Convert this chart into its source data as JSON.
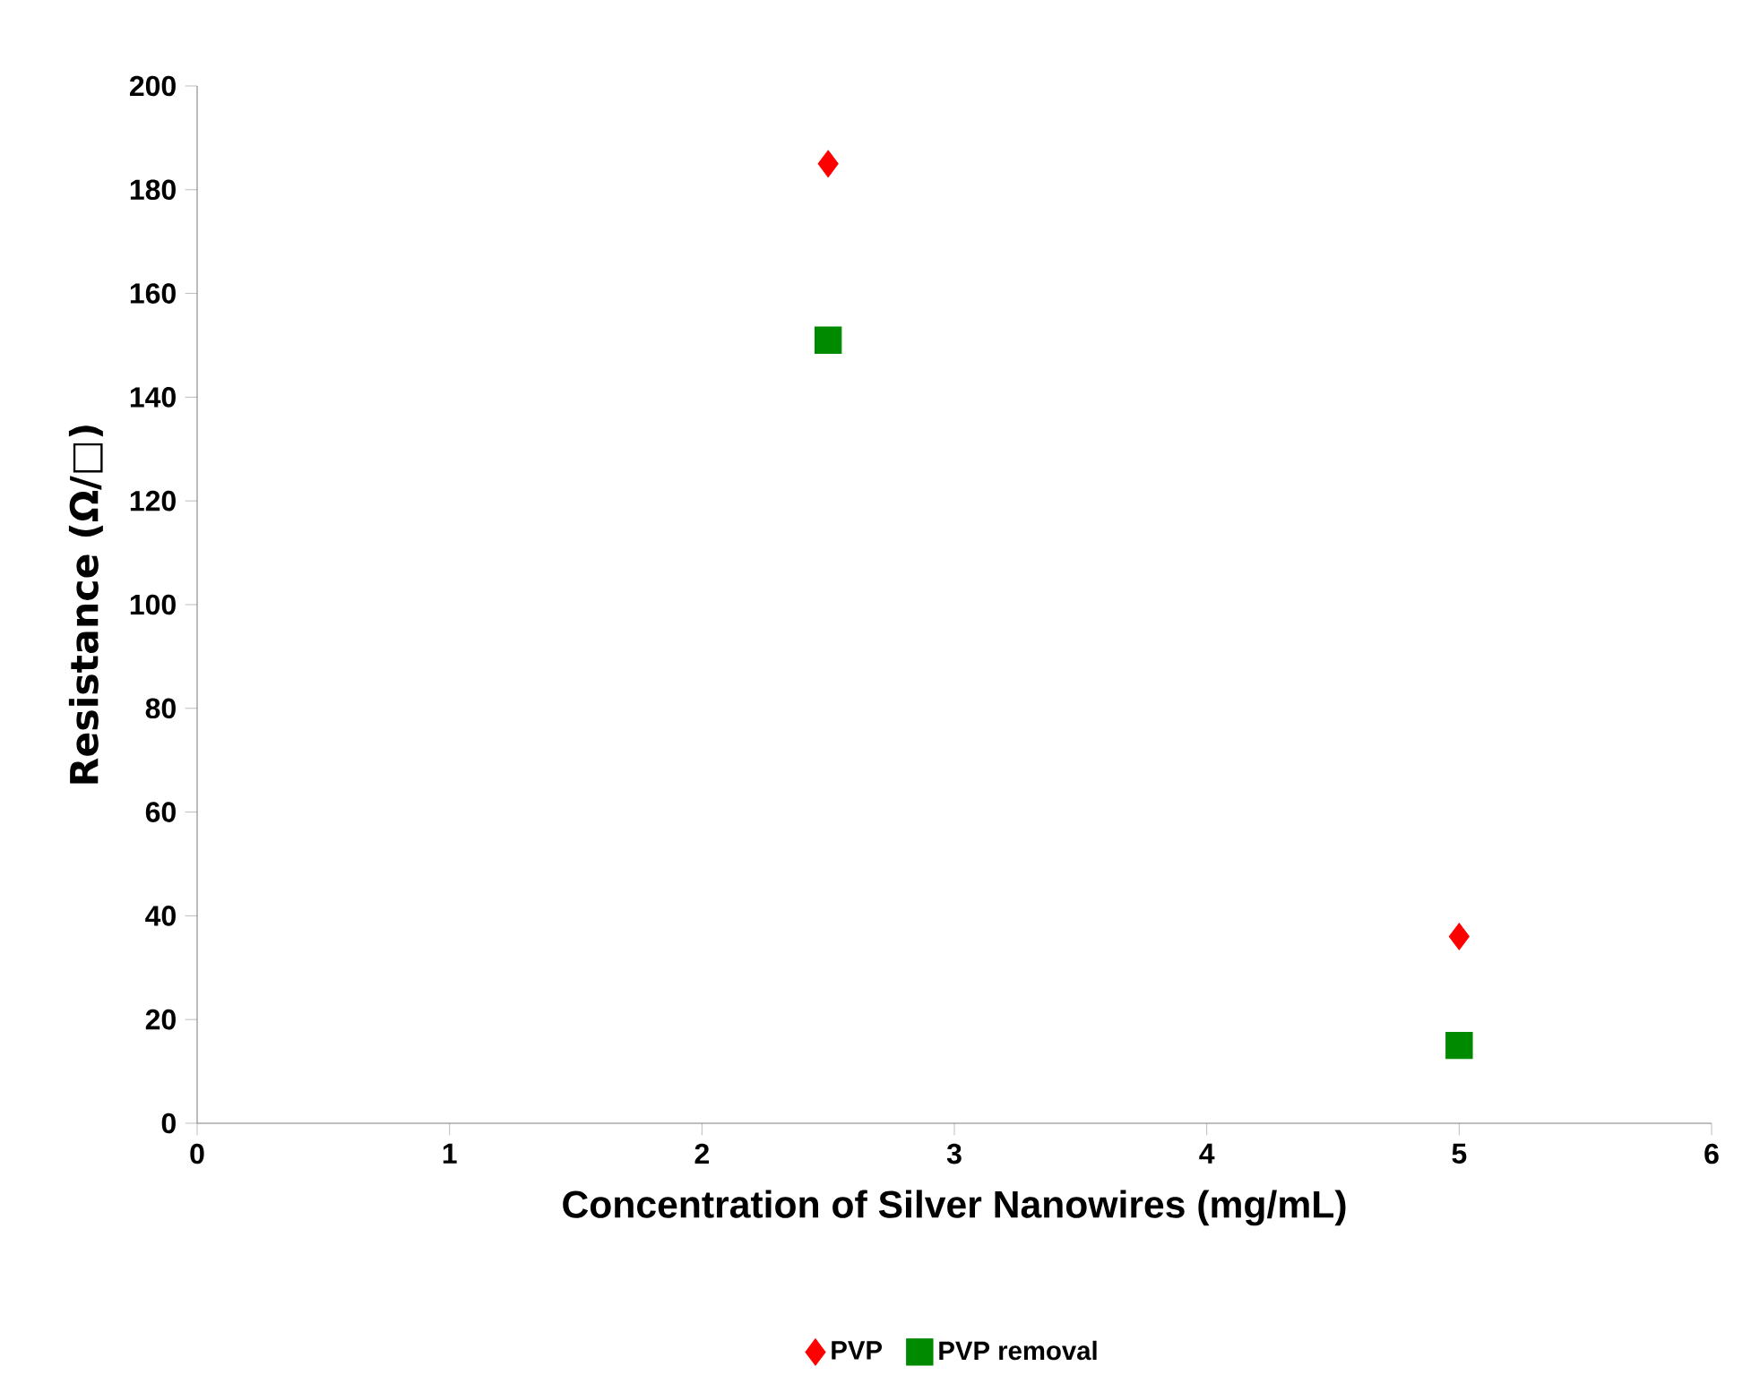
{
  "chart_data": {
    "type": "scatter",
    "xlabel": "Concentration of Silver Nanowires (mg/mL)",
    "ylabel": "Resistance (Ω/□)",
    "x": [
      2.5,
      5
    ],
    "xlim": [
      0,
      6
    ],
    "xticks": [
      0,
      1,
      2,
      3,
      4,
      5,
      6
    ],
    "ylim": [
      0,
      200
    ],
    "yticks": [
      0,
      20,
      40,
      60,
      80,
      100,
      120,
      140,
      160,
      180,
      200
    ],
    "grid": false,
    "legend": "bottom",
    "series": [
      {
        "name": "PVP",
        "color": "#ff0000",
        "marker": "diamond",
        "values": [
          185,
          36
        ]
      },
      {
        "name": "PVP removal",
        "color": "#008a00",
        "marker": "square",
        "values": [
          151,
          15
        ]
      }
    ]
  }
}
